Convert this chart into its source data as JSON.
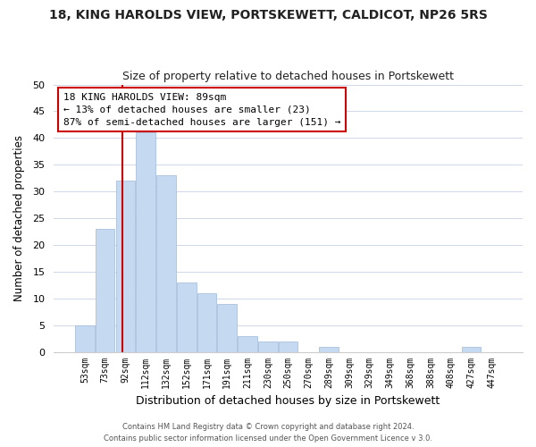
{
  "title": "18, KING HAROLDS VIEW, PORTSKEWETT, CALDICOT, NP26 5RS",
  "subtitle": "Size of property relative to detached houses in Portskewett",
  "xlabel": "Distribution of detached houses by size in Portskewett",
  "ylabel": "Number of detached properties",
  "bar_color": "#c5d9f0",
  "bar_edge_color": "#a0b8d8",
  "bin_labels": [
    "53sqm",
    "73sqm",
    "92sqm",
    "112sqm",
    "132sqm",
    "152sqm",
    "171sqm",
    "191sqm",
    "211sqm",
    "230sqm",
    "250sqm",
    "270sqm",
    "289sqm",
    "309sqm",
    "329sqm",
    "349sqm",
    "368sqm",
    "388sqm",
    "408sqm",
    "427sqm",
    "447sqm"
  ],
  "bar_heights": [
    5,
    23,
    32,
    41,
    33,
    13,
    11,
    9,
    3,
    2,
    2,
    0,
    1,
    0,
    0,
    0,
    0,
    0,
    0,
    1,
    0
  ],
  "ylim": [
    0,
    50
  ],
  "yticks": [
    0,
    5,
    10,
    15,
    20,
    25,
    30,
    35,
    40,
    45,
    50
  ],
  "annotation_title": "18 KING HAROLDS VIEW: 89sqm",
  "annotation_line1": "← 13% of detached houses are smaller (23)",
  "annotation_line2": "87% of semi-detached houses are larger (151) →",
  "annotation_box_color": "#ffffff",
  "annotation_box_edge_color": "#cc0000",
  "property_line_color": "#cc0000",
  "footer_line1": "Contains HM Land Registry data © Crown copyright and database right 2024.",
  "footer_line2": "Contains public sector information licensed under the Open Government Licence v 3.0.",
  "background_color": "#ffffff",
  "grid_color": "#d0d8e8",
  "title_fontsize": 10,
  "subtitle_fontsize": 9
}
